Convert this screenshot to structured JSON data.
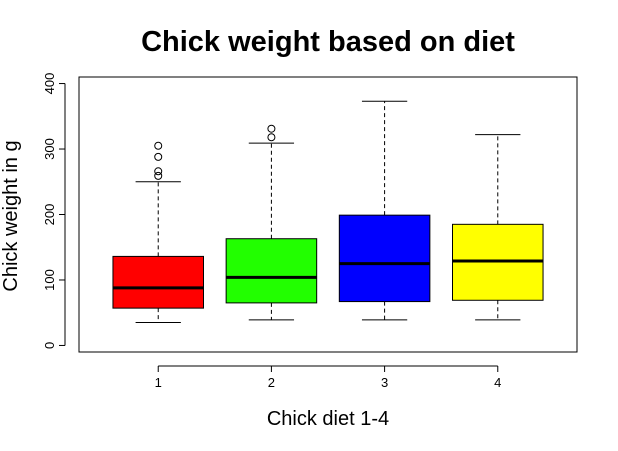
{
  "chart_data": {
    "type": "box",
    "title": "Chick weight based on diet",
    "xlabel": "Chick diet 1-4",
    "ylabel": "Chick weight in g",
    "categories": [
      "1",
      "2",
      "3",
      "4"
    ],
    "ylim": [
      -10,
      410
    ],
    "yticks": [
      0,
      100,
      200,
      300,
      400
    ],
    "grid": false,
    "boxes": [
      {
        "category": "1",
        "color": "#ff0000",
        "min": 35,
        "q1": 57,
        "median": 88,
        "q3": 136,
        "max": 250,
        "outliers": [
          259,
          266,
          288,
          305
        ]
      },
      {
        "category": "2",
        "color": "#22ff00",
        "min": 39,
        "q1": 65,
        "median": 104,
        "q3": 163,
        "max": 309,
        "outliers": [
          318,
          331
        ]
      },
      {
        "category": "3",
        "color": "#0000ff",
        "min": 39,
        "q1": 67,
        "median": 125,
        "q3": 199,
        "max": 373,
        "outliers": []
      },
      {
        "category": "4",
        "color": "#ffff00",
        "min": 39,
        "q1": 69,
        "median": 129,
        "q3": 185,
        "max": 322,
        "outliers": []
      }
    ]
  }
}
